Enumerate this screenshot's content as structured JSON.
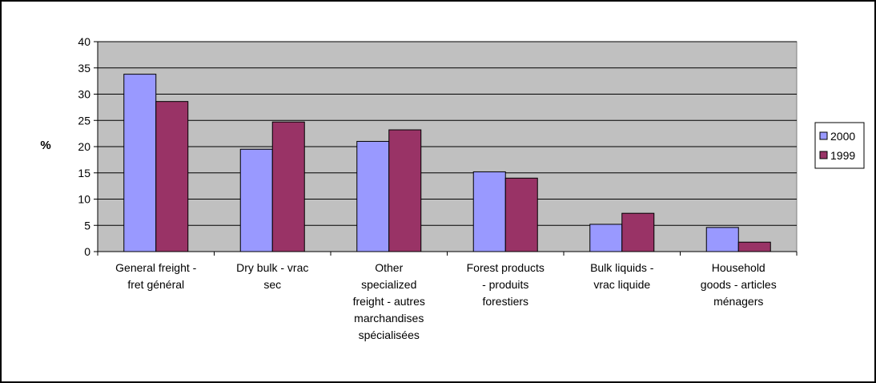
{
  "chart_data": {
    "type": "bar",
    "title": "",
    "xlabel": "",
    "ylabel": "%",
    "ylim": [
      0,
      40
    ],
    "yticks": [
      0,
      5,
      10,
      15,
      20,
      25,
      30,
      35,
      40
    ],
    "grid": true,
    "legend_position": "right",
    "categories": [
      [
        "General freight -",
        "fret général"
      ],
      [
        "Dry bulk - vrac",
        "sec"
      ],
      [
        "Other",
        "specialized",
        "freight - autres",
        "marchandises",
        "spécialisées"
      ],
      [
        "Forest products",
        "- produits",
        "forestiers"
      ],
      [
        "Bulk liquids -",
        "vrac liquide"
      ],
      [
        "Household",
        "goods - articles",
        "ménagers"
      ]
    ],
    "series": [
      {
        "name": "2000",
        "color": "#9999FF",
        "values": [
          33.8,
          19.5,
          21.0,
          15.2,
          5.2,
          4.6
        ]
      },
      {
        "name": "1999",
        "color": "#993366",
        "values": [
          28.6,
          24.7,
          23.2,
          14.0,
          7.3,
          1.8
        ]
      }
    ],
    "colors": {
      "plot_bg": "#C0C0C0",
      "grid": "#000000",
      "bar_outline": "#000000",
      "border": "#000000"
    }
  }
}
